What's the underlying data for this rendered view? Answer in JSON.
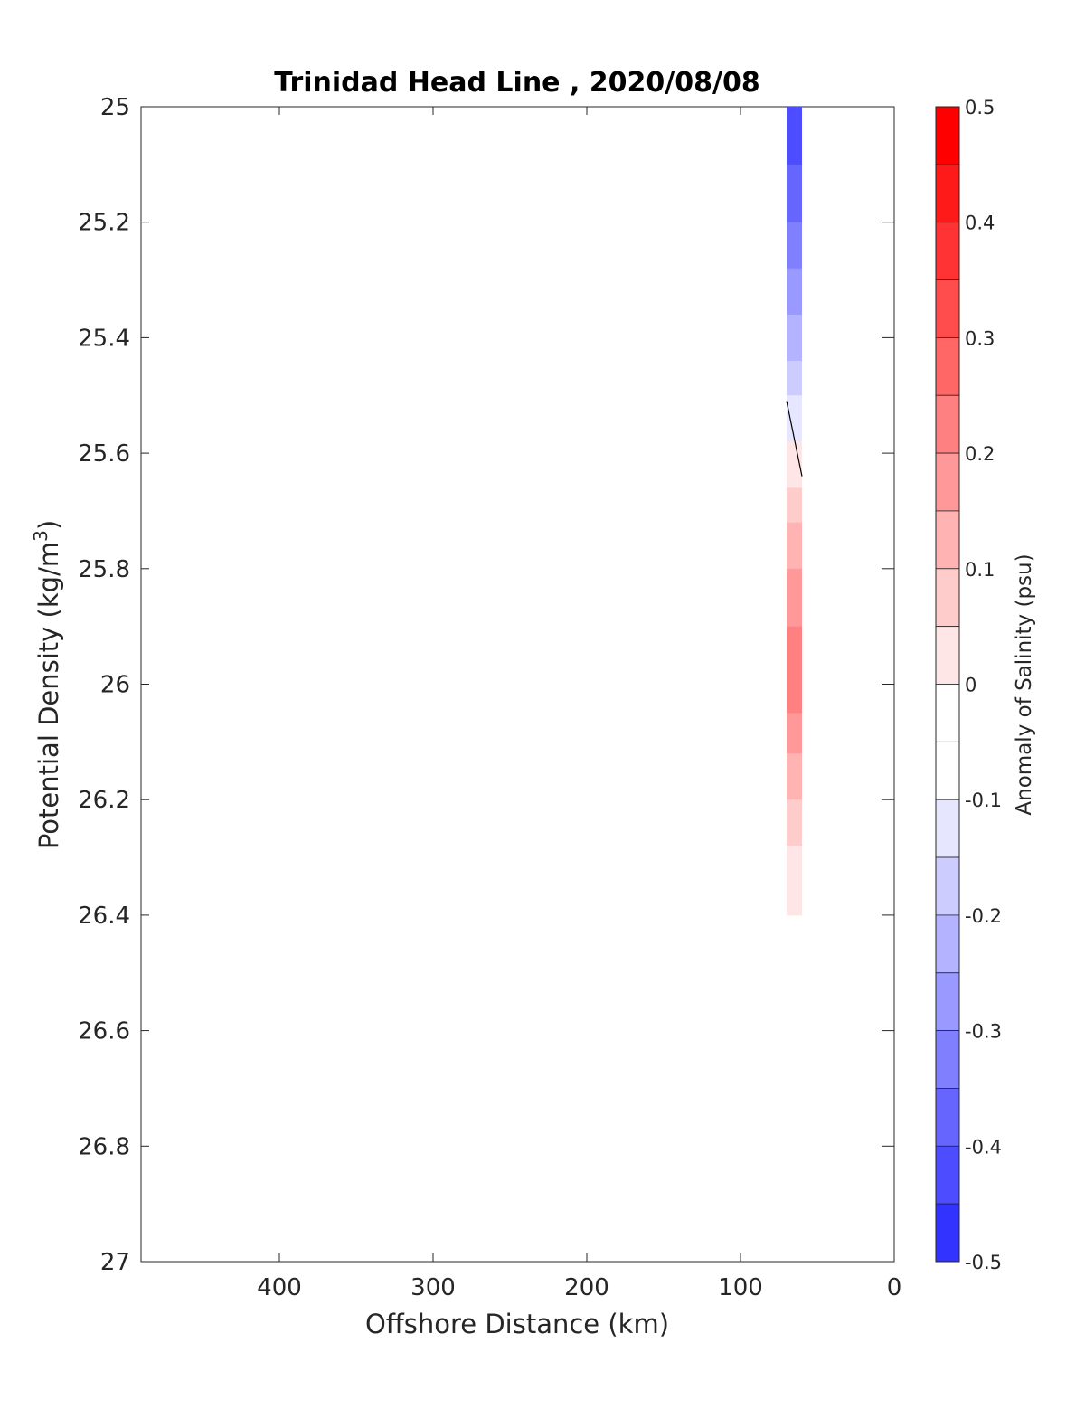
{
  "chart_data": {
    "type": "heatmap",
    "title": "Trinidad Head Line , 2020/08/08",
    "xlabel": "Offshore Distance (km)",
    "ylabel_main": "Potential Density (kg/m",
    "ylabel_sup": "3",
    "ylabel_close": ")",
    "colorbar_label": "Anomaly of Salinity (psu)",
    "xlim": [
      490,
      0
    ],
    "ylim": [
      25,
      27
    ],
    "x_reversed": true,
    "y_reversed": true,
    "x_ticks": [
      400,
      300,
      200,
      100,
      0
    ],
    "x_tick_labels": [
      "400",
      "300",
      "200",
      "100",
      "0"
    ],
    "y_ticks": [
      25,
      25.2,
      25.4,
      25.6,
      25.8,
      26,
      26.2,
      26.4,
      26.6,
      26.8,
      27
    ],
    "y_tick_labels": [
      "25",
      "25.2",
      "25.4",
      "25.6",
      "25.8",
      "26",
      "26.2",
      "26.4",
      "26.6",
      "26.8",
      "27"
    ],
    "colorbar_range": [
      -0.5,
      0.5
    ],
    "colorbar_ticks": [
      0.5,
      0.4,
      0.3,
      0.2,
      0.1,
      0,
      -0.1,
      -0.2,
      -0.3,
      -0.4,
      -0.5
    ],
    "colorbar_tick_labels": [
      "0.5",
      "0.4",
      "0.3",
      "0.2",
      "0.1",
      "0",
      "-0.1",
      "-0.2",
      "-0.3",
      "-0.4",
      "-0.5"
    ],
    "color_levels": [
      {
        "from": 0.45,
        "to": 0.5,
        "color": "#ff0000"
      },
      {
        "from": 0.4,
        "to": 0.45,
        "color": "#ff1a1a"
      },
      {
        "from": 0.35,
        "to": 0.4,
        "color": "#ff3333"
      },
      {
        "from": 0.3,
        "to": 0.35,
        "color": "#ff4d4d"
      },
      {
        "from": 0.25,
        "to": 0.3,
        "color": "#ff6666"
      },
      {
        "from": 0.2,
        "to": 0.25,
        "color": "#ff8080"
      },
      {
        "from": 0.15,
        "to": 0.2,
        "color": "#ff9999"
      },
      {
        "from": 0.1,
        "to": 0.15,
        "color": "#ffb3b3"
      },
      {
        "from": 0.05,
        "to": 0.1,
        "color": "#ffcccc"
      },
      {
        "from": 0.0,
        "to": 0.05,
        "color": "#ffe6e6"
      },
      {
        "from": -0.05,
        "to": 0.0,
        "color": "#ffffff"
      },
      {
        "from": -0.1,
        "to": -0.05,
        "color": "#ffffff"
      },
      {
        "from": -0.15,
        "to": -0.1,
        "color": "#e6e6ff"
      },
      {
        "from": -0.2,
        "to": -0.15,
        "color": "#ccccff"
      },
      {
        "from": -0.25,
        "to": -0.2,
        "color": "#b3b3ff"
      },
      {
        "from": -0.3,
        "to": -0.25,
        "color": "#9999ff"
      },
      {
        "from": -0.35,
        "to": -0.3,
        "color": "#8080ff"
      },
      {
        "from": -0.4,
        "to": -0.35,
        "color": "#6666ff"
      },
      {
        "from": -0.45,
        "to": -0.4,
        "color": "#4d4dff"
      },
      {
        "from": -0.5,
        "to": -0.45,
        "color": "#3333ff"
      }
    ],
    "section_strip": {
      "x_near": 70,
      "x_far": 60,
      "bands": [
        {
          "y0": 25.0,
          "y1": 25.1,
          "anomaly": -0.43
        },
        {
          "y0": 25.1,
          "y1": 25.2,
          "anomaly": -0.38
        },
        {
          "y0": 25.2,
          "y1": 25.28,
          "anomaly": -0.33
        },
        {
          "y0": 25.28,
          "y1": 25.36,
          "anomaly": -0.28
        },
        {
          "y0": 25.36,
          "y1": 25.44,
          "anomaly": -0.22
        },
        {
          "y0": 25.44,
          "y1": 25.5,
          "anomaly": -0.17
        },
        {
          "y0": 25.5,
          "y1": 25.58,
          "anomaly": -0.12
        },
        {
          "y0": 25.58,
          "y1": 25.66,
          "anomaly": 0.03
        },
        {
          "y0": 25.66,
          "y1": 25.72,
          "anomaly": 0.07
        },
        {
          "y0": 25.72,
          "y1": 25.8,
          "anomaly": 0.12
        },
        {
          "y0": 25.8,
          "y1": 25.9,
          "anomaly": 0.17
        },
        {
          "y0": 25.9,
          "y1": 26.05,
          "anomaly": 0.22
        },
        {
          "y0": 26.05,
          "y1": 26.12,
          "anomaly": 0.18
        },
        {
          "y0": 26.12,
          "y1": 26.2,
          "anomaly": 0.12
        },
        {
          "y0": 26.2,
          "y1": 26.28,
          "anomaly": 0.07
        },
        {
          "y0": 26.28,
          "y1": 26.4,
          "anomaly": 0.03
        }
      ]
    },
    "zero_contour": {
      "points": [
        [
          70,
          25.51
        ],
        [
          60,
          25.64
        ]
      ]
    }
  }
}
